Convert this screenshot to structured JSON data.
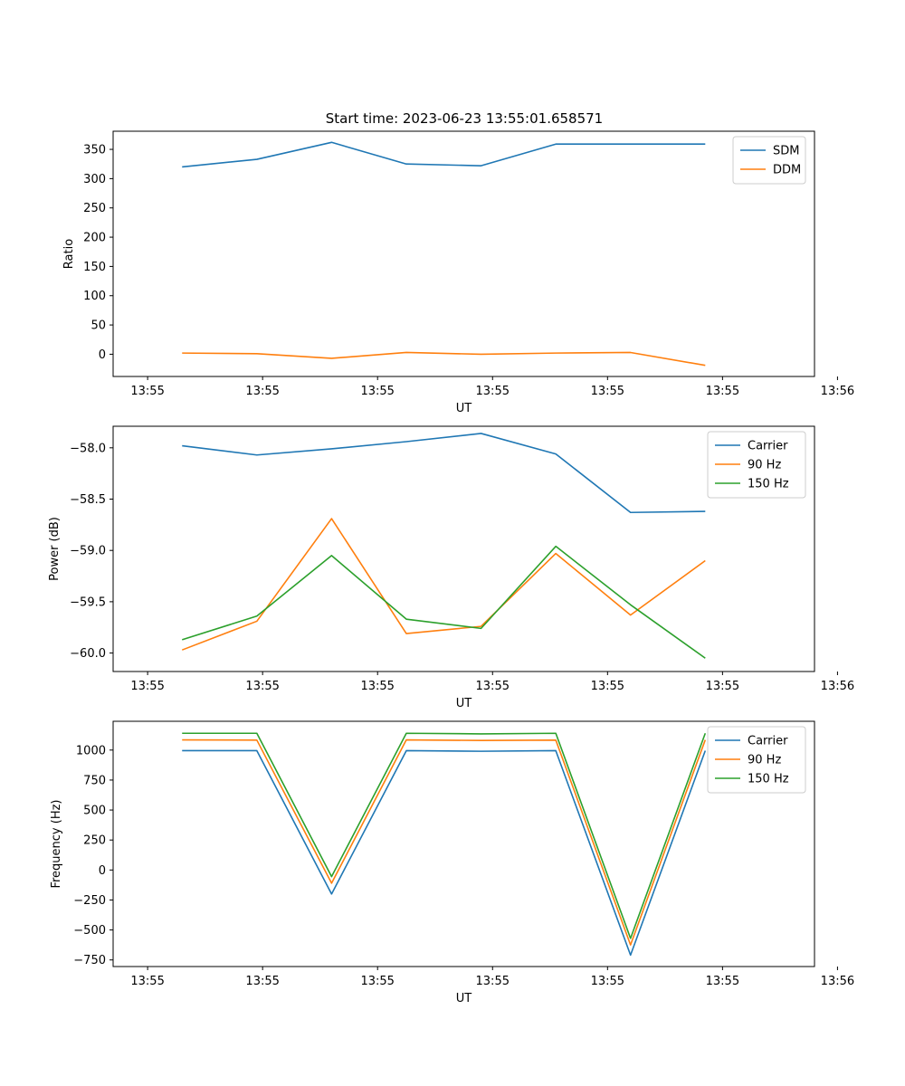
{
  "figure": {
    "title": "Start time: 2023-06-23 13:55:01.658571"
  },
  "chart_data": [
    {
      "type": "line",
      "name": "ratio-panel",
      "title": "Start time: 2023-06-23 13:55:01.658571",
      "xlabel": "UT",
      "ylabel": "Ratio",
      "x": [
        0.3,
        0.95,
        1.6,
        2.25,
        2.9,
        3.55,
        4.2,
        4.85
      ],
      "xlim": [
        -0.3,
        5.8
      ],
      "xticks": [
        0,
        1,
        2,
        3,
        4,
        5,
        6
      ],
      "xtick_labels": [
        "13:55",
        "13:55",
        "13:55",
        "13:55",
        "13:55",
        "13:55",
        "13:56"
      ],
      "ylim": [
        -38,
        381
      ],
      "yticks": [
        0,
        50,
        100,
        150,
        200,
        250,
        300,
        350
      ],
      "ytick_labels": [
        "0",
        "50",
        "100",
        "150",
        "200",
        "250",
        "300",
        "350"
      ],
      "legend": "top-right",
      "series": [
        {
          "name": "SDM",
          "color": "#1f77b4",
          "values": [
            320,
            333,
            362,
            325,
            322,
            359,
            359,
            359
          ]
        },
        {
          "name": "DDM",
          "color": "#ff7f0e",
          "values": [
            2,
            1,
            -7,
            3,
            0,
            2,
            3,
            -19
          ]
        }
      ]
    },
    {
      "type": "line",
      "name": "power-panel",
      "xlabel": "UT",
      "ylabel": "Power (dB)",
      "x": [
        0.3,
        0.95,
        1.6,
        2.25,
        2.9,
        3.55,
        4.2,
        4.85
      ],
      "xlim": [
        -0.3,
        5.8
      ],
      "xticks": [
        0,
        1,
        2,
        3,
        4,
        5,
        6
      ],
      "xtick_labels": [
        "13:55",
        "13:55",
        "13:55",
        "13:55",
        "13:55",
        "13:55",
        "13:56"
      ],
      "ylim": [
        -60.18,
        -57.79
      ],
      "yticks": [
        -60.0,
        -59.5,
        -59.0,
        -58.5,
        -58.0
      ],
      "ytick_labels": [
        "−60.0",
        "−59.5",
        "−59.0",
        "−58.5",
        "−58.0"
      ],
      "legend": "top-right",
      "series": [
        {
          "name": "Carrier",
          "color": "#1f77b4",
          "values": [
            -57.98,
            -58.07,
            -58.01,
            -57.94,
            -57.86,
            -58.06,
            -58.63,
            -58.62
          ]
        },
        {
          "name": "90 Hz",
          "color": "#ff7f0e",
          "values": [
            -59.97,
            -59.69,
            -58.69,
            -59.81,
            -59.74,
            -59.03,
            -59.63,
            -59.1
          ]
        },
        {
          "name": "150 Hz",
          "color": "#2ca02c",
          "values": [
            -59.87,
            -59.64,
            -59.05,
            -59.67,
            -59.76,
            -58.96,
            -59.53,
            -60.05
          ]
        }
      ]
    },
    {
      "type": "line",
      "name": "frequency-panel",
      "xlabel": "UT",
      "ylabel": "Frequency (Hz)",
      "x": [
        0.3,
        0.95,
        1.6,
        2.25,
        2.9,
        3.55,
        4.2,
        4.85
      ],
      "xlim": [
        -0.3,
        5.8
      ],
      "xticks": [
        0,
        1,
        2,
        3,
        4,
        5,
        6
      ],
      "xtick_labels": [
        "13:55",
        "13:55",
        "13:55",
        "13:55",
        "13:55",
        "13:55",
        "13:56"
      ],
      "ylim": [
        -805,
        1240
      ],
      "yticks": [
        -750,
        -500,
        -250,
        0,
        250,
        500,
        750,
        1000
      ],
      "ytick_labels": [
        "−750",
        "−500",
        "−250",
        "0",
        "250",
        "500",
        "750",
        "1000"
      ],
      "legend": "top-right",
      "series": [
        {
          "name": "Carrier",
          "color": "#1f77b4",
          "values": [
            995,
            995,
            -200,
            995,
            990,
            995,
            -710,
            995
          ]
        },
        {
          "name": "90 Hz",
          "color": "#ff7f0e",
          "values": [
            1085,
            1083,
            -110,
            1085,
            1080,
            1083,
            -625,
            1085
          ]
        },
        {
          "name": "150 Hz",
          "color": "#2ca02c",
          "values": [
            1140,
            1140,
            -55,
            1140,
            1135,
            1140,
            -570,
            1140
          ]
        }
      ]
    }
  ]
}
